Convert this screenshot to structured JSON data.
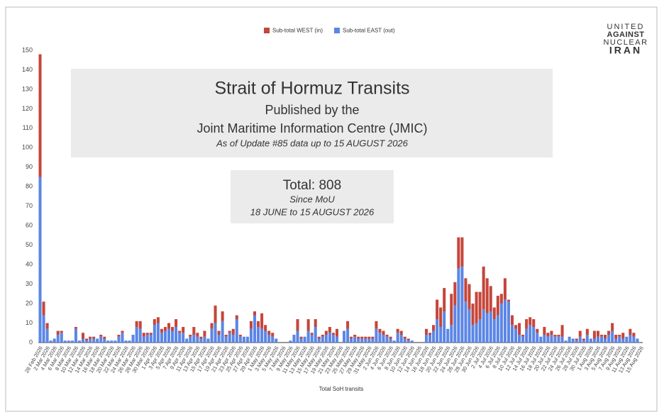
{
  "chart_data": {
    "type": "stacked_bar",
    "legend": "top",
    "grid": false,
    "x_axis_label": "Total SoH transits",
    "ylim": [
      0,
      150
    ],
    "yticks": [
      0,
      10,
      20,
      30,
      40,
      50,
      60,
      70,
      80,
      90,
      100,
      110,
      120,
      130,
      140,
      150
    ],
    "annotations": {
      "title_box": [
        "Strait of Hormuz Transits",
        "Published by the",
        "Joint Maritime Information Centre (JMIC)",
        "As of Update #85 data up to 15 AUGUST 2026"
      ],
      "total_box": [
        "Total: 808",
        "Since MoU",
        "18 JUNE to 15 AUGUST 2026"
      ]
    },
    "logo": [
      "UNITED",
      "AGAINST",
      "NUCLEAR",
      "IRAN"
    ],
    "categories": [
      "28 Feb 2026",
      null,
      "2 Mar 2026",
      null,
      "4 Mar 2026",
      null,
      "6 Mar 2026",
      null,
      "8 Mar 2026",
      null,
      "10 Mar 2026",
      null,
      "12 Mar 2026",
      null,
      "14 Mar 2026",
      null,
      "16 Mar 2026",
      null,
      "18 Mar 2026",
      null,
      "20 Mar 2026",
      null,
      "22 Mar 2026",
      null,
      "24 Mar 2026",
      null,
      "26 Mar 2026",
      null,
      "28 Mar 2026",
      null,
      "30 Mar 2026",
      null,
      "1 Apr 2026",
      null,
      "3 Apr 2026",
      null,
      "5 Apr 2026",
      null,
      "7 Apr 2026",
      null,
      "9 Apr 2026",
      null,
      "11 Apr 2026",
      null,
      "13 Apr 2026",
      null,
      "15 Apr 2026",
      null,
      "17 Apr 2026",
      null,
      "19 Apr 2026",
      null,
      "21 Apr 2026",
      null,
      "23 Apr 2026",
      null,
      "25 Apr 2026",
      null,
      "27 Apr 2026",
      null,
      "29 Apr 2026",
      null,
      "1 May 2026",
      null,
      "3 May 2026",
      null,
      "5 May 2026",
      null,
      "7 May 2026",
      null,
      "9 May 2026",
      null,
      "11 May 2026",
      null,
      "13 May 2026",
      null,
      "15 May 2026",
      null,
      "17 May 2026",
      null,
      "19 May 2026",
      null,
      "21 May 2026",
      null,
      "23 May 2026",
      null,
      "25 May 2026",
      null,
      "27 May 2026",
      null,
      "29 May 2026",
      null,
      "31 May 2026",
      null,
      "2 Jun 2026",
      null,
      "4 Jun 2026",
      null,
      "6 Jun 2026",
      null,
      "8 Jun 2026",
      null,
      "10 Jun 2026",
      null,
      "12 Jun 2026",
      null,
      "14 Jun 2026",
      null,
      "16 Jun 2026",
      null,
      "18 Jun 2026",
      null,
      "20 Jun 2026",
      null,
      "22 Jun 2026",
      null,
      "24 Jun 2026",
      null,
      "26 Jun 2026",
      null,
      "28 Jun 2026",
      null,
      "30 Jun 2026",
      null,
      "2 Jul 2026",
      null,
      "4 Jul 2026",
      null,
      "6 Jul 2026",
      null,
      "8 Jul 2026",
      null,
      "10 Jul 2026",
      null,
      "12 Jul 2026",
      null,
      "14 Jul 2026",
      null,
      "16 Jul 2026",
      null,
      "18 Jul 2026",
      null,
      "20 Jul 2026",
      null,
      "22 Jul 2026",
      null,
      "24 Jul 2026",
      null,
      "26 Jul 2026",
      null,
      "28 Jul 2026",
      null,
      "30 Jul 2026",
      null,
      "1 Aug 2026",
      null,
      "3 Aug 2026",
      null,
      "5 Aug 2026",
      null,
      "7 Aug 2026",
      null,
      "9 Aug 2026",
      null,
      "11 Aug 2026",
      null,
      "13 Aug 2026",
      null,
      "15 Aug 2026"
    ],
    "series": [
      {
        "name": "Sub-total WEST (in)",
        "color": "#c5463a",
        "values": [
          63,
          7,
          3,
          0,
          0,
          2,
          1,
          0,
          0,
          0,
          1,
          0,
          3,
          1,
          1,
          1,
          0,
          1,
          1,
          0,
          0,
          0,
          1,
          1,
          0,
          0,
          0,
          3,
          4,
          2,
          1,
          1,
          3,
          3,
          2,
          2,
          3,
          2,
          4,
          1,
          3,
          0,
          1,
          4,
          2,
          1,
          3,
          0,
          3,
          9,
          2,
          5,
          1,
          1,
          3,
          2,
          1,
          0,
          0,
          4,
          2,
          3,
          8,
          3,
          2,
          2,
          0,
          0,
          0,
          0,
          0,
          0,
          6,
          1,
          0,
          6,
          1,
          4,
          1,
          1,
          2,
          3,
          1,
          4,
          0,
          0,
          4,
          1,
          1,
          1,
          1,
          1,
          1,
          1,
          4,
          2,
          2,
          1,
          1,
          0,
          2,
          2,
          1,
          1,
          0,
          0,
          0,
          0,
          3,
          1,
          3,
          10,
          10,
          12,
          0,
          16,
          12,
          16,
          15,
          12,
          13,
          11,
          16,
          14,
          22,
          18,
          13,
          6,
          10,
          5,
          11,
          1,
          5,
          2,
          6,
          1,
          5,
          4,
          4,
          2,
          0,
          4,
          2,
          2,
          1,
          1,
          6,
          0,
          0,
          0,
          1,
          3,
          1,
          3,
          0,
          4,
          3,
          1,
          2,
          2,
          4,
          2,
          1,
          3,
          0,
          3,
          2,
          0,
          0
        ]
      },
      {
        "name": "Sub-total EAST (out)",
        "color": "#5b86e5",
        "values": [
          85,
          14,
          7,
          1,
          2,
          4,
          5,
          1,
          1,
          1,
          7,
          1,
          2,
          1,
          2,
          2,
          2,
          3,
          2,
          1,
          1,
          1,
          3,
          5,
          1,
          1,
          4,
          8,
          7,
          3,
          4,
          4,
          9,
          10,
          5,
          6,
          7,
          6,
          8,
          5,
          5,
          2,
          3,
          4,
          3,
          2,
          3,
          2,
          7,
          10,
          4,
          11,
          3,
          5,
          4,
          12,
          3,
          3,
          3,
          7,
          14,
          8,
          7,
          6,
          4,
          3,
          2,
          0,
          0,
          0,
          1,
          4,
          6,
          2,
          3,
          6,
          4,
          8,
          2,
          3,
          4,
          5,
          4,
          3,
          0,
          6,
          7,
          2,
          3,
          2,
          2,
          2,
          2,
          2,
          7,
          5,
          4,
          3,
          2,
          1,
          5,
          4,
          2,
          1,
          1,
          0,
          0,
          0,
          4,
          4,
          6,
          12,
          8,
          16,
          7,
          9,
          19,
          38,
          39,
          21,
          17,
          9,
          10,
          12,
          17,
          15,
          16,
          12,
          14,
          20,
          22,
          21,
          9,
          7,
          4,
          3,
          7,
          9,
          8,
          5,
          3,
          4,
          3,
          4,
          3,
          3,
          3,
          1,
          3,
          2,
          1,
          3,
          1,
          4,
          2,
          2,
          3,
          3,
          2,
          4,
          6,
          2,
          3,
          2,
          3,
          4,
          3,
          2,
          0
        ]
      }
    ]
  }
}
